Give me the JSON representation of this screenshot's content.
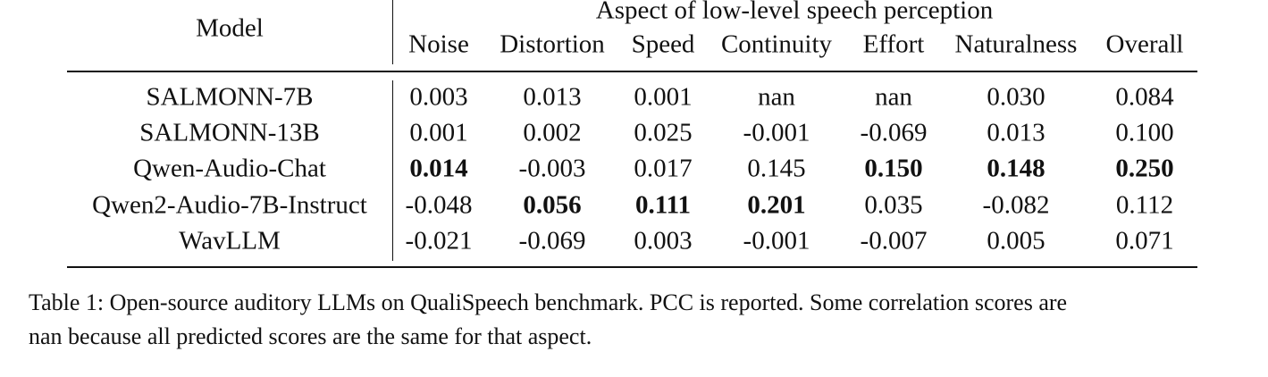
{
  "table": {
    "model_header": "Model",
    "group_header": "Aspect of low-level speech perception",
    "columns": [
      "Noise",
      "Distortion",
      "Speed",
      "Continuity",
      "Effort",
      "Naturalness",
      "Overall"
    ],
    "rows": [
      {
        "model": "SALMONN-7B",
        "cells": [
          {
            "text": "0.003",
            "bold": false
          },
          {
            "text": "0.013",
            "bold": false
          },
          {
            "text": "0.001",
            "bold": false
          },
          {
            "text": "nan",
            "bold": false
          },
          {
            "text": "nan",
            "bold": false
          },
          {
            "text": "0.030",
            "bold": false
          },
          {
            "text": "0.084",
            "bold": false
          }
        ]
      },
      {
        "model": "SALMONN-13B",
        "cells": [
          {
            "text": "0.001",
            "bold": false
          },
          {
            "text": "0.002",
            "bold": false
          },
          {
            "text": "0.025",
            "bold": false
          },
          {
            "text": "-0.001",
            "bold": false
          },
          {
            "text": "-0.069",
            "bold": false
          },
          {
            "text": "0.013",
            "bold": false
          },
          {
            "text": "0.100",
            "bold": false
          }
        ]
      },
      {
        "model": "Qwen-Audio-Chat",
        "cells": [
          {
            "text": "0.014",
            "bold": true
          },
          {
            "text": "-0.003",
            "bold": false
          },
          {
            "text": "0.017",
            "bold": false
          },
          {
            "text": "0.145",
            "bold": false
          },
          {
            "text": "0.150",
            "bold": true
          },
          {
            "text": "0.148",
            "bold": true
          },
          {
            "text": "0.250",
            "bold": true
          }
        ]
      },
      {
        "model": "Qwen2-Audio-7B-Instruct",
        "cells": [
          {
            "text": "-0.048",
            "bold": false
          },
          {
            "text": "0.056",
            "bold": true
          },
          {
            "text": "0.111",
            "bold": true
          },
          {
            "text": "0.201",
            "bold": true
          },
          {
            "text": "0.035",
            "bold": false
          },
          {
            "text": "-0.082",
            "bold": false
          },
          {
            "text": "0.112",
            "bold": false
          }
        ]
      },
      {
        "model": "WavLLM",
        "cells": [
          {
            "text": "-0.021",
            "bold": false
          },
          {
            "text": "-0.069",
            "bold": false
          },
          {
            "text": "0.003",
            "bold": false
          },
          {
            "text": "-0.001",
            "bold": false
          },
          {
            "text": "-0.007",
            "bold": false
          },
          {
            "text": "0.005",
            "bold": false
          },
          {
            "text": "0.071",
            "bold": false
          }
        ]
      }
    ]
  },
  "caption": [
    "Table 1: Open-source auditory LLMs on QualiSpeech benchmark. PCC is reported. Some correlation scores are",
    "nan because all predicted scores are the same for that aspect."
  ]
}
